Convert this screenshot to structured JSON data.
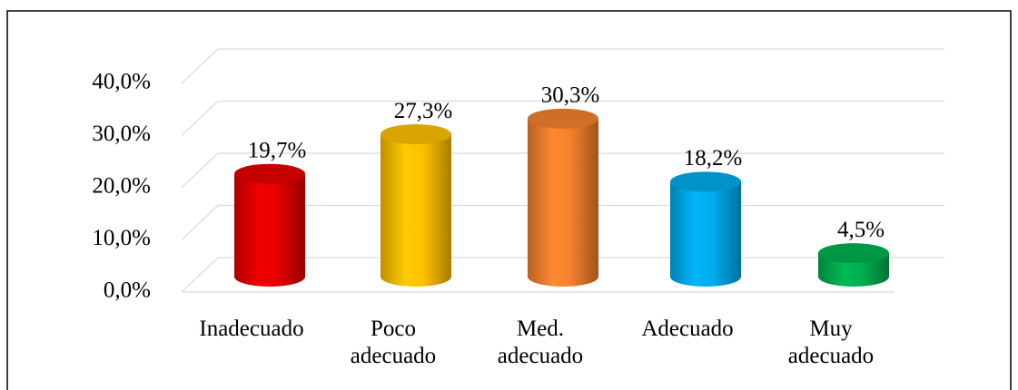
{
  "chart_data": {
    "type": "bar",
    "categories": [
      "Inadecuado",
      "Poco adecuado",
      "Med. adecuado",
      "Adecuado",
      "Muy adecuado"
    ],
    "values": [
      19.7,
      27.3,
      30.3,
      18.2,
      4.5
    ],
    "value_labels": [
      "19,7%",
      "27,3%",
      "30,3%",
      "18,2%",
      "4,5%"
    ],
    "colors": [
      "#e60000",
      "#ffc000",
      "#f5812e",
      "#00adee",
      "#00b050"
    ],
    "ylim": [
      0,
      40
    ],
    "yticks": [
      {
        "value": 0,
        "label": "0,0%"
      },
      {
        "value": 10,
        "label": "10,0%"
      },
      {
        "value": 20,
        "label": "20,0%"
      },
      {
        "value": 30,
        "label": "30,0%"
      },
      {
        "value": 40,
        "label": "40,0%"
      }
    ],
    "grid": true
  }
}
